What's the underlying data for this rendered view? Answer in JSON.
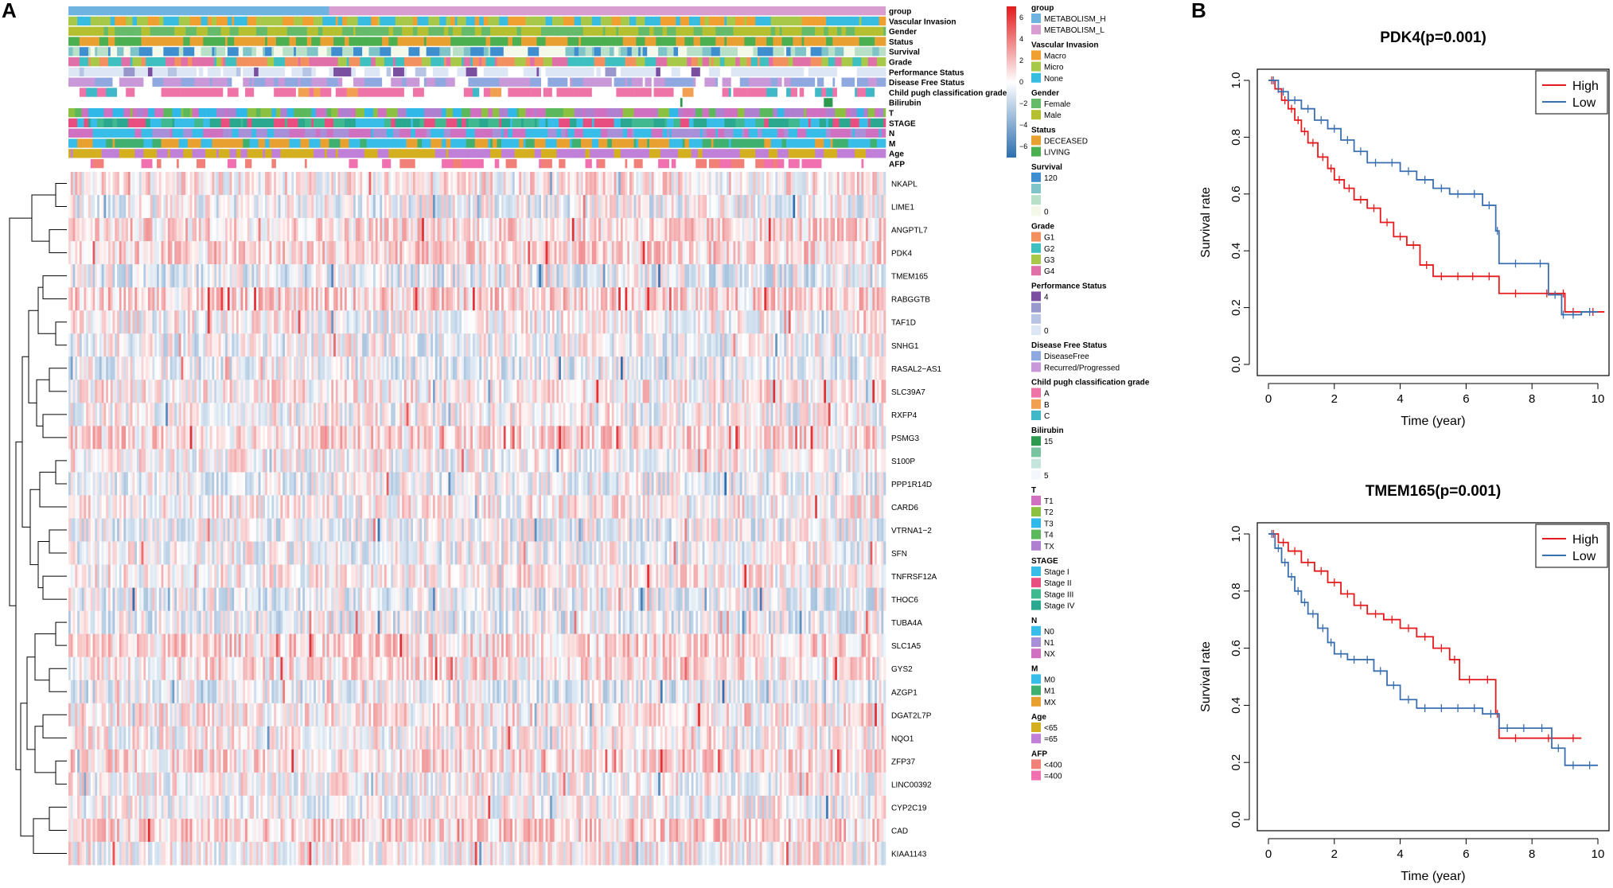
{
  "panel_labels": {
    "a": "A",
    "b": "B"
  },
  "chart_data": [
    {
      "type": "heatmap",
      "panel": "A",
      "title": "",
      "annotation_tracks": [
        "group",
        "Vascular Invasion",
        "Gender",
        "Status",
        "Survival",
        "Grade",
        "Performance Status",
        "Disease Free Status",
        "Child pugh classification grade",
        "Bilirubin",
        "T",
        "STAGE",
        "N",
        "M",
        "Age",
        "AFP"
      ],
      "genes": [
        "NKAPL",
        "LIME1",
        "ANGPTL7",
        "PDK4",
        "TMEM165",
        "RABGGTB",
        "TAF1D",
        "SNHG1",
        "RASAL2−AS1",
        "SLC39A7",
        "RXFP4",
        "PSMG3",
        "S100P",
        "PPP1R14D",
        "CARD6",
        "VTRNA1−2",
        "SFN",
        "TNFRSF12A",
        "THOC6",
        "TUBA4A",
        "SLC1A5",
        "GYS2",
        "AZGP1",
        "DGAT2L7P",
        "NQO1",
        "ZFP37",
        "LINC00392",
        "CYP2C19",
        "CAD",
        "KIAA1143"
      ],
      "groups": [
        {
          "name": "METABOLISM_H",
          "fraction": 0.32,
          "color": "#6fb3e0"
        },
        {
          "name": "METABOLISM_L",
          "fraction": 0.68,
          "color": "#d99ed0"
        }
      ],
      "colorscale": {
        "ticks": [
          "6",
          "4",
          "2",
          "0",
          "−2",
          "−4",
          "−6"
        ],
        "high": "#e41a1c",
        "mid": "#ffffff",
        "low": "#2d6fb0"
      },
      "legend": [
        {
          "title": "group",
          "items": [
            {
              "label": "METABOLISM_H",
              "color": "#6fb3e0"
            },
            {
              "label": "METABOLISM_L",
              "color": "#d99ed0"
            }
          ]
        },
        {
          "title": "Vascular Invasion",
          "items": [
            {
              "label": "Macro",
              "color": "#f0a030"
            },
            {
              "label": "Micro",
              "color": "#a8c84a"
            },
            {
              "label": "None",
              "color": "#38bde0"
            }
          ]
        },
        {
          "title": "Gender",
          "items": [
            {
              "label": "Female",
              "color": "#66bb6a"
            },
            {
              "label": "Male",
              "color": "#b5c030"
            }
          ]
        },
        {
          "title": "Status",
          "items": [
            {
              "label": "DECEASED",
              "color": "#e8a030"
            },
            {
              "label": "LIVING",
              "color": "#4caf50"
            }
          ]
        },
        {
          "title": "Survival",
          "items": [
            {
              "label": "120",
              "color": "#3f8fd0"
            },
            {
              "label": "",
              "color": "#7fc4c8"
            },
            {
              "label": "",
              "color": "#b8e0c8"
            },
            {
              "label": "0",
              "color": "#f4f8e8"
            }
          ]
        },
        {
          "title": "Grade",
          "items": [
            {
              "label": "G1",
              "color": "#f39060"
            },
            {
              "label": "G2",
              "color": "#3fc0c0"
            },
            {
              "label": "G3",
              "color": "#a8c84a"
            },
            {
              "label": "G4",
              "color": "#e070a8"
            }
          ]
        },
        {
          "title": "Performance Status",
          "items": [
            {
              "label": "4",
              "color": "#7a4fa0"
            },
            {
              "label": "",
              "color": "#9898cc"
            },
            {
              "label": "",
              "color": "#b8c4e4"
            },
            {
              "label": "0",
              "color": "#dde6f4"
            }
          ]
        },
        {
          "title": "Disease Free Status",
          "items": [
            {
              "label": "DiseaseFree",
              "color": "#8fa8e0"
            },
            {
              "label": "Recurred/Progressed",
              "color": "#c898d8"
            }
          ]
        },
        {
          "title": "Child pugh classification grade",
          "items": [
            {
              "label": "A",
              "color": "#ee74a8"
            },
            {
              "label": "B",
              "color": "#f0a050"
            },
            {
              "label": "C",
              "color": "#40b8c8"
            }
          ]
        },
        {
          "title": "Bilirubin",
          "items": [
            {
              "label": "15",
              "color": "#2e9a50"
            },
            {
              "label": "",
              "color": "#78c4a0"
            },
            {
              "label": "",
              "color": "#c4e4dc"
            },
            {
              "label": "5",
              "color": "#f4f8fc"
            }
          ]
        },
        {
          "title": "T",
          "items": [
            {
              "label": "T1",
              "color": "#d070c0"
            },
            {
              "label": "T2",
              "color": "#8cc040"
            },
            {
              "label": "T3",
              "color": "#30b8e8"
            },
            {
              "label": "T4",
              "color": "#5cb85c"
            },
            {
              "label": "TX",
              "color": "#b080d0"
            }
          ]
        },
        {
          "title": "STAGE",
          "items": [
            {
              "label": "Stage I",
              "color": "#38bde8"
            },
            {
              "label": "Stage II",
              "color": "#e84f80"
            },
            {
              "label": "Stage III",
              "color": "#40b890"
            },
            {
              "label": "Stage IV",
              "color": "#2aa890"
            }
          ]
        },
        {
          "title": "N",
          "items": [
            {
              "label": "N0",
              "color": "#38bde8"
            },
            {
              "label": "N1",
              "color": "#a890d8"
            },
            {
              "label": "NX",
              "color": "#d070c0"
            }
          ]
        },
        {
          "title": "M",
          "items": [
            {
              "label": "M0",
              "color": "#38bde8"
            },
            {
              "label": "M1",
              "color": "#40b070"
            },
            {
              "label": "MX",
              "color": "#e8a030"
            }
          ]
        },
        {
          "title": "Age",
          "items": [
            {
              "label": "<65",
              "color": "#d4b020"
            },
            {
              "label": "=65",
              "color": "#c080d8"
            }
          ]
        },
        {
          "title": "AFP",
          "items": [
            {
              "label": "<400",
              "color": "#f08078"
            },
            {
              "label": "=400",
              "color": "#f070b0"
            }
          ]
        }
      ]
    },
    {
      "type": "line",
      "panel": "B",
      "title": "PDK4(p=0.001)",
      "xlabel": "Time (year)",
      "ylabel": "Survival rate",
      "xlim": [
        0,
        10
      ],
      "ylim": [
        0,
        1
      ],
      "xticks": [
        "0",
        "2",
        "4",
        "6",
        "8",
        "10"
      ],
      "yticks": [
        "0.0",
        "0.2",
        "0.4",
        "0.6",
        "0.8",
        "1.0"
      ],
      "legend_position": "top-right",
      "series": [
        {
          "name": "High",
          "color": "#e41a1c",
          "x": [
            0,
            0.2,
            0.4,
            0.6,
            0.8,
            1.0,
            1.2,
            1.5,
            1.8,
            2.0,
            2.3,
            2.6,
            3.0,
            3.4,
            3.8,
            4.2,
            4.6,
            5.0,
            5.5,
            6.0,
            6.4,
            7.0,
            8.0,
            8.9,
            9.0,
            9.5,
            10.2
          ],
          "y": [
            1,
            0.97,
            0.93,
            0.9,
            0.86,
            0.82,
            0.78,
            0.73,
            0.69,
            0.65,
            0.62,
            0.58,
            0.55,
            0.5,
            0.45,
            0.42,
            0.35,
            0.31,
            0.31,
            0.31,
            0.31,
            0.25,
            0.25,
            0.25,
            0.185,
            0.185,
            0.185
          ]
        },
        {
          "name": "Low",
          "color": "#3a6fb0",
          "x": [
            0,
            0.3,
            0.6,
            1.0,
            1.4,
            1.8,
            2.2,
            2.6,
            3.0,
            3.5,
            4.0,
            4.5,
            5.0,
            5.5,
            6.0,
            6.5,
            6.9,
            7.0,
            8.0,
            8.5,
            8.9,
            9.0,
            9.5,
            10.0
          ],
          "y": [
            1,
            0.96,
            0.93,
            0.9,
            0.86,
            0.83,
            0.79,
            0.75,
            0.71,
            0.71,
            0.68,
            0.65,
            0.62,
            0.6,
            0.6,
            0.56,
            0.47,
            0.355,
            0.355,
            0.245,
            0.175,
            0.175,
            0.185,
            0.185
          ]
        }
      ]
    },
    {
      "type": "line",
      "panel": "B",
      "title": "TMEM165(p=0.001)",
      "xlabel": "Time (year)",
      "ylabel": "Survival rate",
      "xlim": [
        0,
        10
      ],
      "ylim": [
        0,
        1
      ],
      "xticks": [
        "0",
        "2",
        "4",
        "6",
        "8",
        "10"
      ],
      "yticks": [
        "0.0",
        "0.2",
        "0.4",
        "0.6",
        "0.8",
        "1.0"
      ],
      "legend_position": "top-right",
      "series": [
        {
          "name": "High",
          "color": "#e41a1c",
          "x": [
            0,
            0.3,
            0.6,
            1.0,
            1.4,
            1.8,
            2.2,
            2.6,
            3.0,
            3.5,
            4.0,
            4.5,
            5.0,
            5.5,
            5.8,
            6.4,
            6.9,
            7.0,
            8.0,
            9.0,
            9.5
          ],
          "y": [
            1,
            0.97,
            0.94,
            0.9,
            0.87,
            0.83,
            0.79,
            0.75,
            0.72,
            0.7,
            0.67,
            0.64,
            0.6,
            0.56,
            0.49,
            0.49,
            0.37,
            0.285,
            0.285,
            0.285,
            0.285
          ]
        },
        {
          "name": "Low",
          "color": "#3a6fb0",
          "x": [
            0,
            0.2,
            0.4,
            0.6,
            0.8,
            1.0,
            1.2,
            1.5,
            1.8,
            2.0,
            2.4,
            2.8,
            3.2,
            3.6,
            4.0,
            4.5,
            5.0,
            5.5,
            6.0,
            6.5,
            7.0,
            7.5,
            8.0,
            8.6,
            9.0,
            9.5,
            10.0
          ],
          "y": [
            1,
            0.95,
            0.9,
            0.85,
            0.8,
            0.76,
            0.72,
            0.67,
            0.62,
            0.58,
            0.56,
            0.56,
            0.52,
            0.47,
            0.42,
            0.39,
            0.39,
            0.39,
            0.39,
            0.37,
            0.32,
            0.32,
            0.32,
            0.25,
            0.19,
            0.19,
            0.19
          ]
        }
      ]
    }
  ]
}
